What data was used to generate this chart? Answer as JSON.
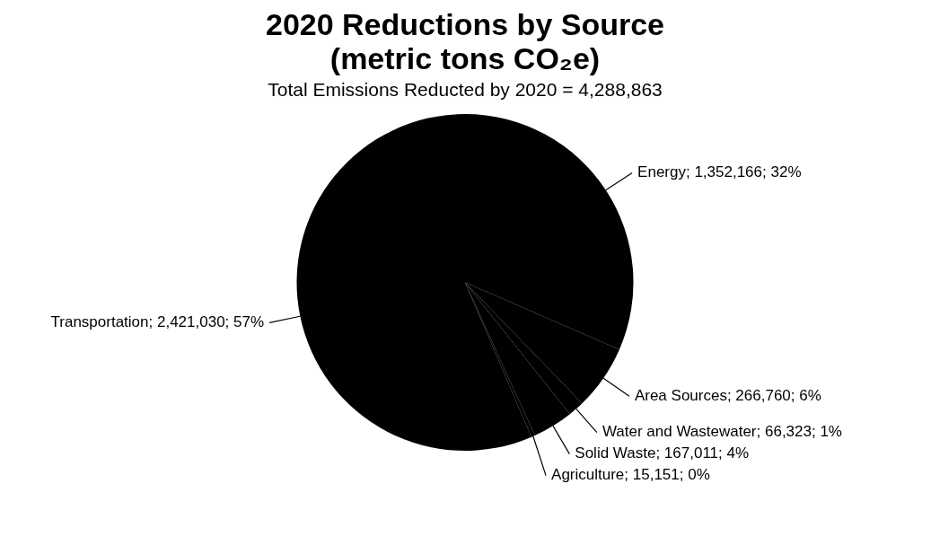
{
  "chart_data": {
    "type": "pie",
    "title": "2020 Reductions by Source (metric tons CO₂e)",
    "subtitle": "Total Emissions Reducted by 2020 = 4,288,863",
    "categories": [
      "Energy",
      "Area Sources",
      "Water and Wastewater",
      "Solid Waste",
      "Agriculture",
      "Transportation"
    ],
    "values": [
      1352166,
      266760,
      66323,
      167011,
      15151,
      2421030
    ],
    "value_labels": [
      "1,352,166; 32%",
      "266,760; 6%",
      "66,323; 1%",
      "167,011; 4%",
      "15,151; 0%",
      "2,421,030; 57%"
    ],
    "colors": [
      "#000000",
      "#000000",
      "#000000",
      "#000000",
      "#000000",
      "#000000"
    ],
    "legend": false
  }
}
